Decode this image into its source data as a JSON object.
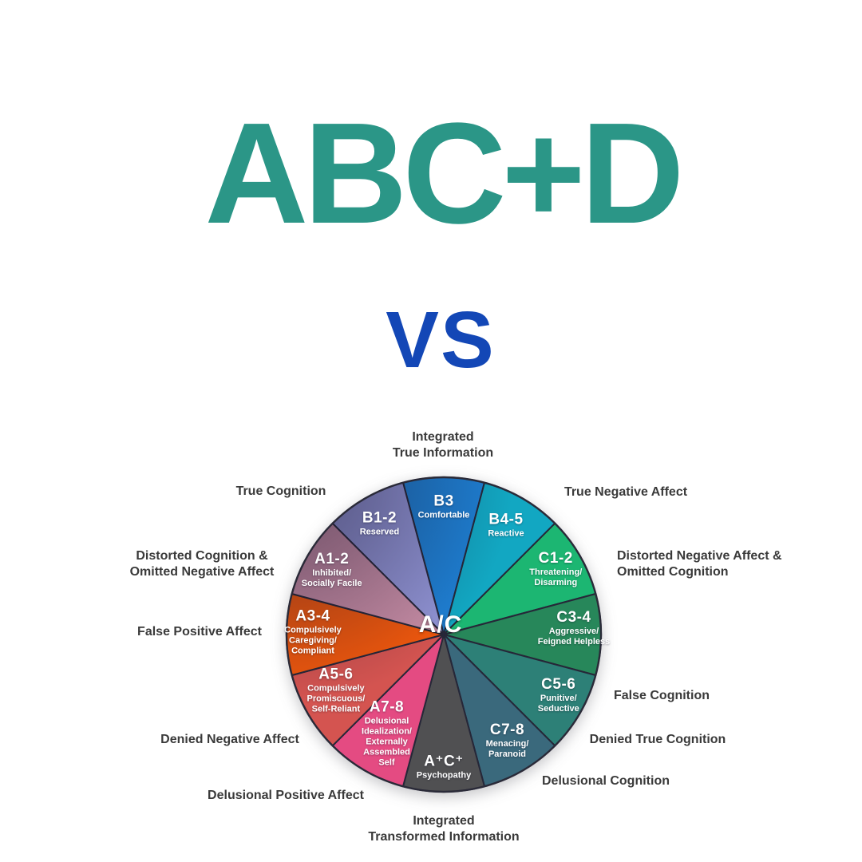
{
  "page": {
    "background": "#ffffff"
  },
  "header": {
    "title": "ABC+D",
    "title_color": "#2b9687",
    "vs": "VS",
    "vs_color": "#1347b6"
  },
  "chart": {
    "type": "circumplex-pie",
    "center_label": "A/C",
    "wedge_border_color": "#262738",
    "outer_label_color": "#3a3a3a",
    "wedges": [
      {
        "code": "B3",
        "label_lines": [
          "Comfortable"
        ],
        "color": "#1e80d4"
      },
      {
        "code": "B4-5",
        "label_lines": [
          "Reactive"
        ],
        "color": "#12a7c2"
      },
      {
        "code": "C1-2",
        "label_lines": [
          "Threatening/",
          "Disarming"
        ],
        "color": "#1cb672"
      },
      {
        "code": "C3-4",
        "label_lines": [
          "Aggressive/",
          "Feigned Helpless"
        ],
        "color": "#27875a"
      },
      {
        "code": "C5-6",
        "label_lines": [
          "Punitive/",
          "Seductive"
        ],
        "color": "#2d8077"
      },
      {
        "code": "C7-8",
        "label_lines": [
          "Menacing/",
          "Paranoid"
        ],
        "color": "#3a697c"
      },
      {
        "code": "A⁺C⁺",
        "label_lines": [
          "Psychopathy"
        ],
        "color": "#505052"
      },
      {
        "code": "A7-8",
        "label_lines": [
          "Delusional",
          "Idealization/",
          "Externally",
          "Assembled",
          "Self"
        ],
        "color": "#e44b82"
      },
      {
        "code": "A5-6",
        "label_lines": [
          "Compulsively",
          "Promiscuous/",
          "Self-Reliant"
        ],
        "color": "#d45450"
      },
      {
        "code": "A3-4",
        "label_lines": [
          "Compulsively",
          "Caregiving/",
          "Compliant"
        ],
        "color": "#f1580c"
      },
      {
        "code": "A1-2",
        "label_lines": [
          "Inhibited/",
          "Socially Facile"
        ],
        "color": "#c98ea6"
      },
      {
        "code": "B1-2",
        "label_lines": [
          "Reserved"
        ],
        "color": "#9295d6"
      }
    ],
    "outer_labels": [
      {
        "id": "integrated-true-information",
        "lines": [
          "Integrated",
          "True Information"
        ]
      },
      {
        "id": "true-negative-affect",
        "lines": [
          "True Negative Affect"
        ]
      },
      {
        "id": "distorted-negative-affect-omitted-cognition",
        "lines": [
          "Distorted Negative Affect &",
          "Omitted Cognition"
        ]
      },
      {
        "id": "false-cognition",
        "lines": [
          "False Cognition"
        ]
      },
      {
        "id": "denied-true-cognition",
        "lines": [
          "Denied True Cognition"
        ]
      },
      {
        "id": "delusional-cognition",
        "lines": [
          "Delusional Cognition"
        ]
      },
      {
        "id": "integrated-transformed-information",
        "lines": [
          "Integrated",
          "Transformed Information"
        ]
      },
      {
        "id": "delusional-positive-affect",
        "lines": [
          "Delusional Positive Affect"
        ]
      },
      {
        "id": "denied-negative-affect",
        "lines": [
          "Denied Negative Affect"
        ]
      },
      {
        "id": "false-positive-affect",
        "lines": [
          "False Positive Affect"
        ]
      },
      {
        "id": "distorted-cognition-omitted-negative-affect",
        "lines": [
          "Distorted Cognition &",
          "Omitted Negative Affect"
        ]
      },
      {
        "id": "true-cognition",
        "lines": [
          "True Cognition"
        ]
      }
    ]
  }
}
